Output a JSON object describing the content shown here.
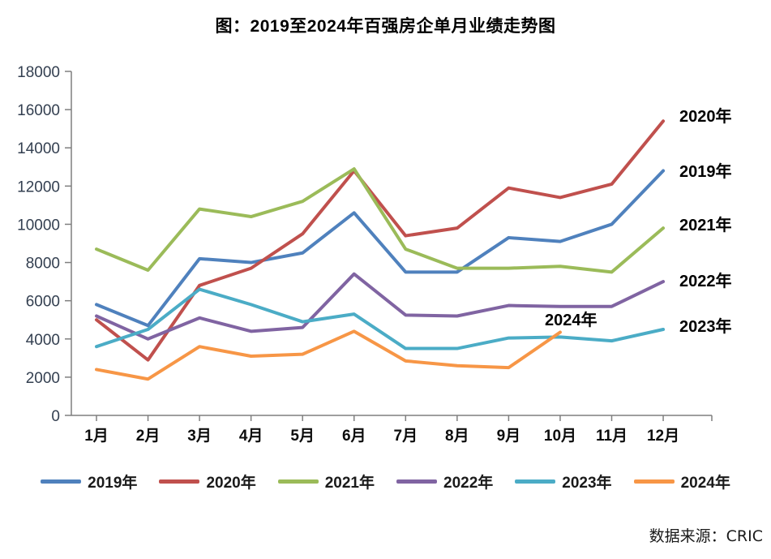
{
  "title": "图：2019至2024年百强房企单月业绩走势图",
  "source_note": "数据来源：CRIC",
  "chart_data": {
    "type": "line",
    "title": "图：2019至2024年百强房企单月业绩走势图",
    "xlabel": "",
    "ylabel": "",
    "ylim": [
      0,
      18000
    ],
    "y_ticks": [
      0,
      2000,
      4000,
      6000,
      8000,
      10000,
      12000,
      14000,
      16000,
      18000
    ],
    "grid": "off",
    "legend_position": "bottom",
    "categories": [
      "1月",
      "2月",
      "3月",
      "4月",
      "5月",
      "6月",
      "7月",
      "8月",
      "9月",
      "10月",
      "11月",
      "12月"
    ],
    "series": [
      {
        "name": "2019年",
        "color": "#4F81BD",
        "values": [
          5800,
          4700,
          8200,
          8000,
          8500,
          10600,
          7500,
          7500,
          9300,
          9100,
          10000,
          12800
        ]
      },
      {
        "name": "2020年",
        "color": "#C0504D",
        "values": [
          5000,
          2900,
          6800,
          7700,
          9500,
          12800,
          9400,
          9800,
          11900,
          11400,
          12100,
          15400
        ]
      },
      {
        "name": "2021年",
        "color": "#9BBB59",
        "values": [
          8700,
          7600,
          10800,
          10400,
          11200,
          12900,
          8700,
          7700,
          7700,
          7800,
          7500,
          9800
        ]
      },
      {
        "name": "2022年",
        "color": "#8064A2",
        "values": [
          5200,
          4000,
          5100,
          4400,
          4600,
          7400,
          5250,
          5200,
          5750,
          5700,
          5700,
          7000
        ]
      },
      {
        "name": "2023年",
        "color": "#4BACC6",
        "values": [
          3600,
          4500,
          6600,
          5800,
          4900,
          5300,
          3500,
          3500,
          4050,
          4100,
          3900,
          4500
        ]
      },
      {
        "name": "2024年",
        "color": "#F79646",
        "values": [
          2400,
          1900,
          3600,
          3100,
          3200,
          4400,
          2850,
          2600,
          2500,
          4350,
          null,
          null
        ]
      }
    ],
    "annotations": [
      {
        "text": "2020年",
        "x": 838,
        "y": 150,
        "anchor": "start"
      },
      {
        "text": "2019年",
        "x": 838,
        "y": 218,
        "anchor": "start"
      },
      {
        "text": "2021年",
        "x": 838,
        "y": 284,
        "anchor": "start"
      },
      {
        "text": "2022年",
        "x": 838,
        "y": 353,
        "anchor": "start"
      },
      {
        "text": "2023年",
        "x": 838,
        "y": 409,
        "anchor": "start"
      },
      {
        "text": "2024年",
        "x": 672,
        "y": 401,
        "anchor": "start"
      }
    ],
    "axis_color": "#7f7f7f"
  }
}
